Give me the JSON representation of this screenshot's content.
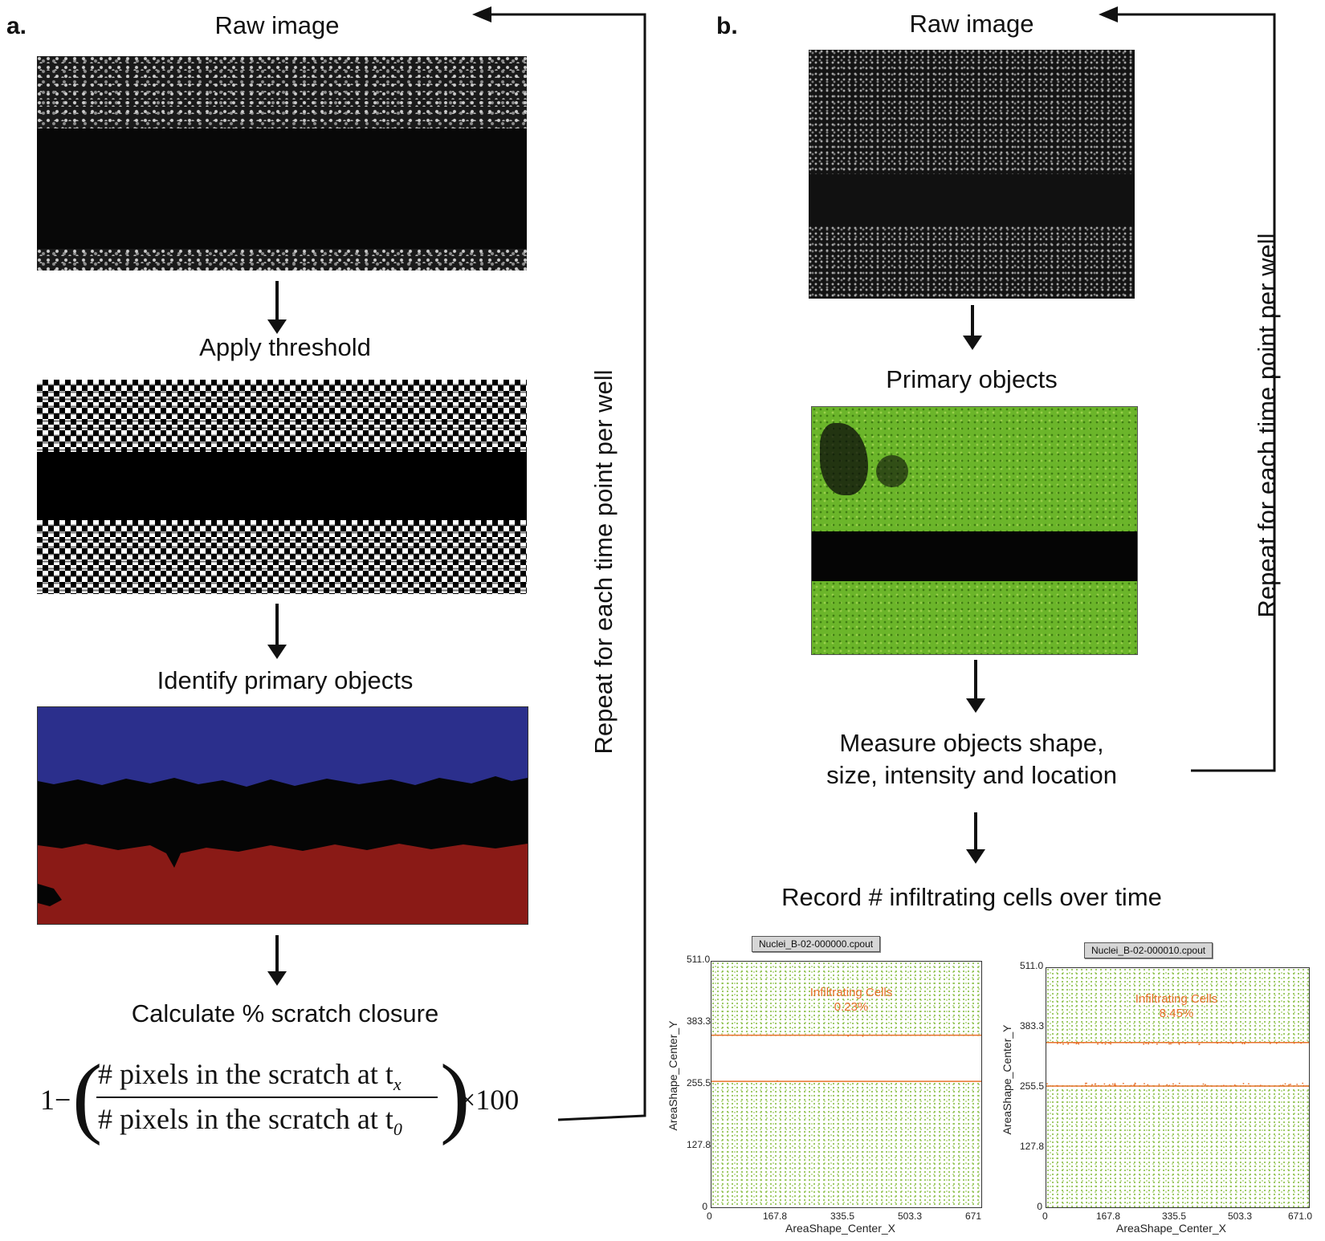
{
  "panel_a": {
    "letter": "a.",
    "steps": [
      "Raw image",
      "Apply threshold",
      "Identify primary objects",
      "Calculate % scratch closure"
    ],
    "formula": {
      "lead": "1−",
      "numerator": "# pixels in the scratch at t",
      "numerator_sub": "x",
      "denominator": "# pixels in the scratch at t",
      "denominator_sub": "0",
      "tail": "×100"
    },
    "loop_label": "Repeat for each time point per well",
    "colors": {
      "top_object": "#2b2f8c",
      "bottom_object": "#8a1a16",
      "background": "#050505"
    }
  },
  "panel_b": {
    "letter": "b.",
    "steps": [
      "Raw image",
      "Primary objects",
      "Measure objects shape,",
      "size, intensity and location",
      "Record # infiltrating cells over time"
    ],
    "loop_label": "Repeat for each time point per well",
    "overlay_color": "#6bb52a"
  },
  "chart_data": [
    {
      "type": "scatter",
      "title": "Nuclei_B-02-000000.cpout",
      "xlabel": "AreaShape_Center_X",
      "ylabel": "AreaShape_Center_Y",
      "xlim": [
        0,
        671.0
      ],
      "ylim": [
        0,
        511.0
      ],
      "xticks": [
        "0",
        "167.8",
        "335.5",
        "503.3",
        "671"
      ],
      "yticks": [
        "0",
        "127.8",
        "255.5",
        "383.3",
        "511.0"
      ],
      "gate_lines_y": [
        358,
        262
      ],
      "annotation": [
        "Infiltrating Cells",
        "0.23%"
      ],
      "infiltrating_percent": 0.23,
      "colors": {
        "points": "#8cc04a",
        "gate": "#e8702a"
      }
    },
    {
      "type": "scatter",
      "title": "Nuclei_B-02-000010.cpout",
      "xlabel": "AreaShape_Center_X",
      "ylabel": "AreaShape_Center_Y",
      "xlim": [
        0,
        671.0
      ],
      "ylim": [
        0,
        511.0
      ],
      "xticks": [
        "0",
        "167.8",
        "335.5",
        "503.3",
        "671.0"
      ],
      "yticks": [
        "0",
        "127.8",
        "255.5",
        "383.3",
        "511.0"
      ],
      "gate_lines_y": [
        352,
        259
      ],
      "annotation": [
        "Infiltrating Cells",
        "8.45%"
      ],
      "infiltrating_percent": 8.45,
      "colors": {
        "points": "#8cc04a",
        "gate": "#e8702a"
      }
    }
  ]
}
